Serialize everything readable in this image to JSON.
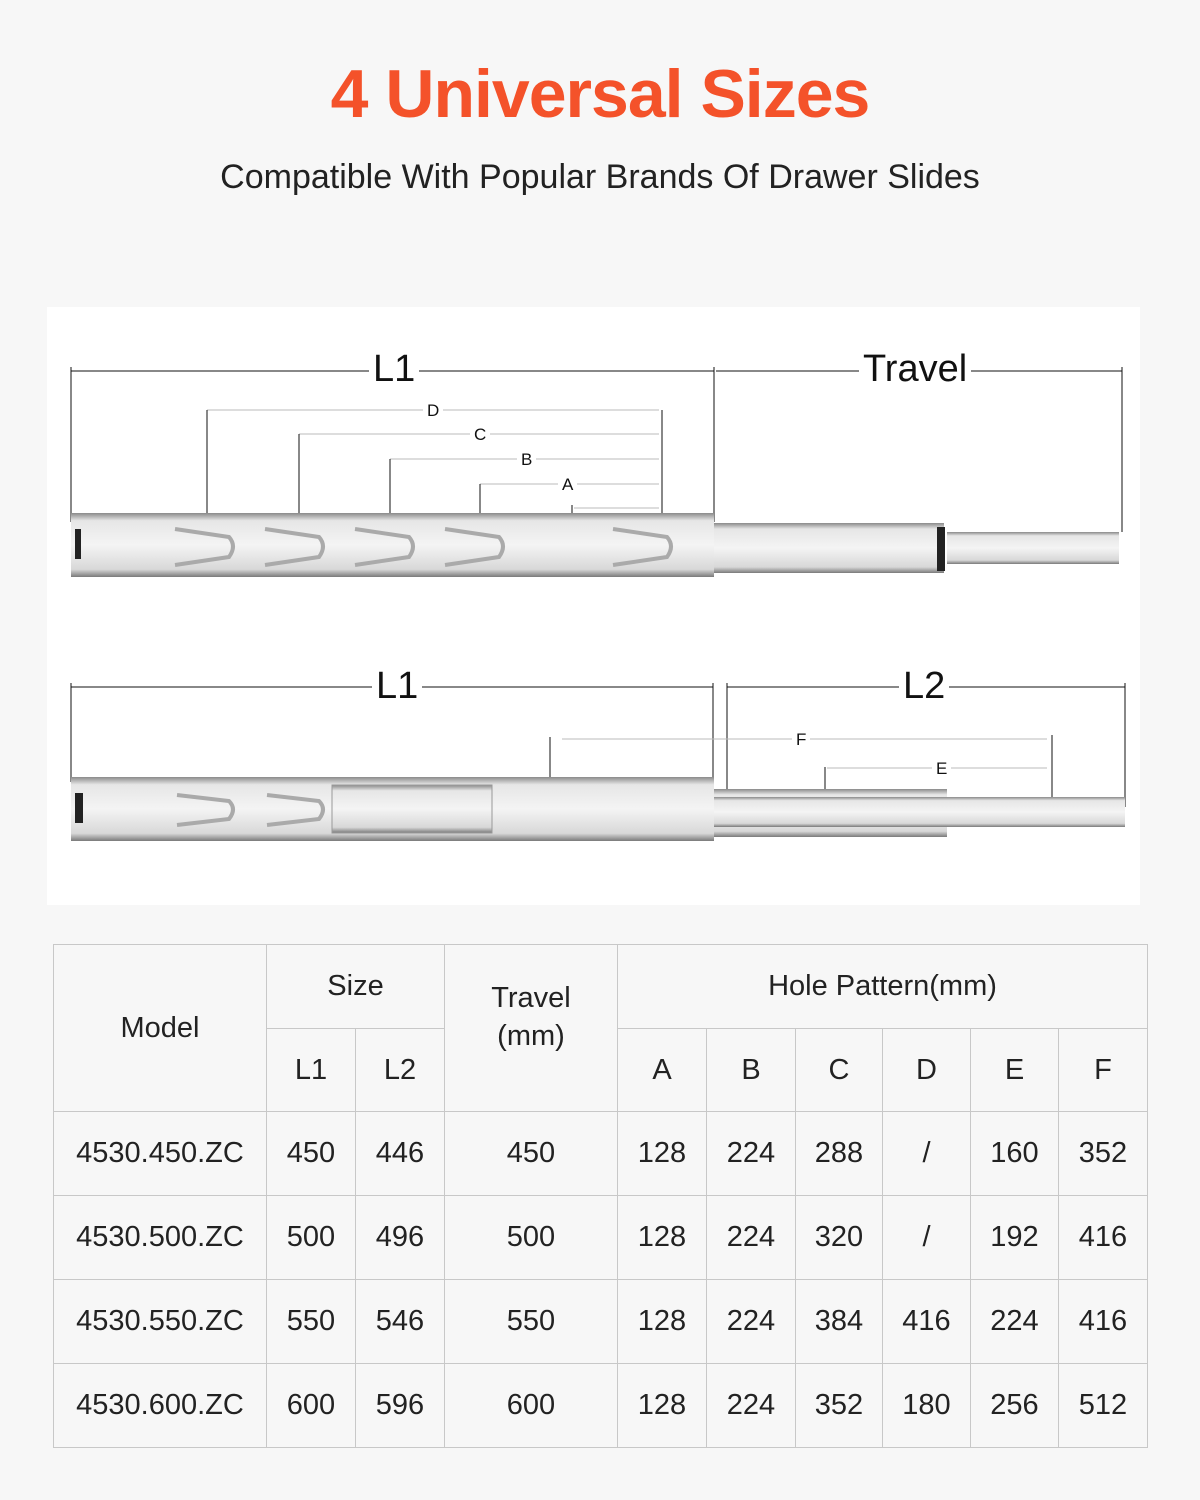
{
  "header": {
    "title": "4 Universal Sizes",
    "subtitle": "Compatible With Popular Brands Of Drawer Slides"
  },
  "diagram": {
    "top": {
      "l1": "L1",
      "travel": "Travel",
      "d": "D",
      "c": "C",
      "b": "B",
      "a": "A"
    },
    "bottom": {
      "l1": "L1",
      "l2": "L2",
      "f": "F",
      "e": "E"
    }
  },
  "table": {
    "headers": {
      "model": "Model",
      "size": "Size",
      "l1": "L1",
      "l2": "L2",
      "travel": "Travel\n(mm)",
      "hole_pattern": "Hole Pattern(mm)",
      "cols": [
        "A",
        "B",
        "C",
        "D",
        "E",
        "F"
      ]
    },
    "rows": [
      {
        "model": "4530.450.ZC",
        "l1": "450",
        "l2": "446",
        "travel": "450",
        "a": "128",
        "b": "224",
        "c": "288",
        "d": "/",
        "e": "160",
        "f": "352"
      },
      {
        "model": "4530.500.ZC",
        "l1": "500",
        "l2": "496",
        "travel": "500",
        "a": "128",
        "b": "224",
        "c": "320",
        "d": "/",
        "e": "192",
        "f": "416"
      },
      {
        "model": "4530.550.ZC",
        "l1": "550",
        "l2": "546",
        "travel": "550",
        "a": "128",
        "b": "224",
        "c": "384",
        "d": "416",
        "e": "224",
        "f": "416"
      },
      {
        "model": "4530.600.ZC",
        "l1": "600",
        "l2": "596",
        "travel": "600",
        "a": "128",
        "b": "224",
        "c": "352",
        "d": "180",
        "e": "256",
        "f": "512"
      }
    ]
  }
}
